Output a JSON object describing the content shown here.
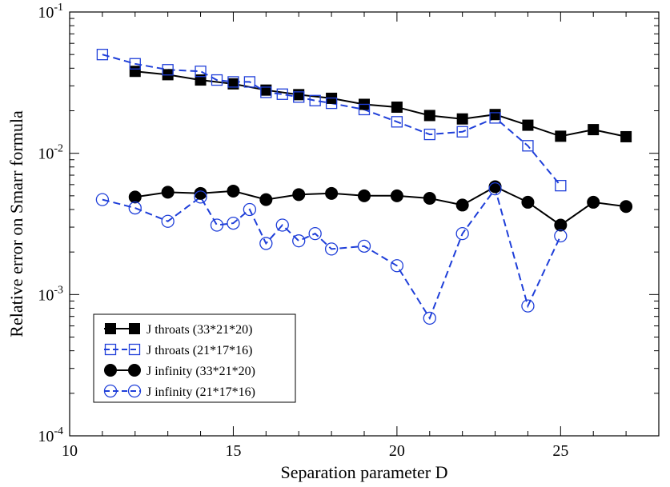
{
  "chart_data": {
    "type": "line",
    "xlabel": "Separation parameter D",
    "ylabel": "Relative error on Smarr formula",
    "xlim": [
      10,
      28
    ],
    "ylim": [
      0.0001,
      0.1
    ],
    "y_scale": "log",
    "grid": false,
    "legend_position": "bottom-left",
    "x_ticks": [
      "10",
      "15",
      "20",
      "25"
    ],
    "y_ticks": [
      {
        "base": "10",
        "exp": "-4"
      },
      {
        "base": "10",
        "exp": "-3"
      },
      {
        "base": "10",
        "exp": "-2"
      },
      {
        "base": "10",
        "exp": "-1"
      }
    ],
    "series": [
      {
        "name": "J throats (33*21*20)",
        "color": "#000000",
        "marker": "square-filled",
        "line": "solid",
        "x": [
          12,
          13,
          14,
          15,
          16,
          17,
          18,
          19,
          20,
          21,
          22,
          23,
          24,
          25,
          26,
          27
        ],
        "y": [
          0.038,
          0.036,
          0.033,
          0.031,
          0.028,
          0.026,
          0.0245,
          0.0222,
          0.0212,
          0.0185,
          0.0175,
          0.0188,
          0.0158,
          0.0132,
          0.0147,
          0.0131
        ]
      },
      {
        "name": "J throats (21*17*16)",
        "color": "#1f3fd9",
        "marker": "square-open",
        "line": "dashed",
        "x": [
          11,
          12,
          13,
          14,
          14.5,
          15,
          15.5,
          16,
          16.5,
          17,
          17.5,
          18,
          19,
          20,
          21,
          22,
          23,
          24,
          25
        ],
        "y": [
          0.05,
          0.043,
          0.039,
          0.038,
          0.033,
          0.032,
          0.032,
          0.027,
          0.0262,
          0.025,
          0.0236,
          0.0226,
          0.0204,
          0.0167,
          0.0136,
          0.0142,
          0.0178,
          0.0113,
          0.0059
        ]
      },
      {
        "name": "J infinity (33*21*20)",
        "color": "#000000",
        "marker": "circle-filled",
        "line": "solid",
        "x": [
          12,
          13,
          14,
          15,
          16,
          17,
          18,
          19,
          20,
          21,
          22,
          23,
          24,
          25,
          26,
          27
        ],
        "y": [
          0.0049,
          0.0053,
          0.0052,
          0.0054,
          0.0047,
          0.0051,
          0.0052,
          0.005,
          0.005,
          0.0048,
          0.0043,
          0.0058,
          0.0045,
          0.0031,
          0.0045,
          0.0042
        ]
      },
      {
        "name": "J infinity (21*17*16)",
        "color": "#1f3fd9",
        "marker": "circle-open",
        "line": "dashed",
        "x": [
          11,
          12,
          13,
          14,
          14.5,
          15,
          15.5,
          16,
          16.5,
          17,
          17.5,
          18,
          19,
          20,
          21,
          22,
          23,
          24,
          25
        ],
        "y": [
          0.0047,
          0.0041,
          0.0033,
          0.0049,
          0.0031,
          0.0032,
          0.004,
          0.0023,
          0.0031,
          0.0024,
          0.0027,
          0.0021,
          0.0022,
          0.0016,
          0.00068,
          0.0027,
          0.0056,
          0.00083,
          0.0026
        ]
      }
    ]
  }
}
